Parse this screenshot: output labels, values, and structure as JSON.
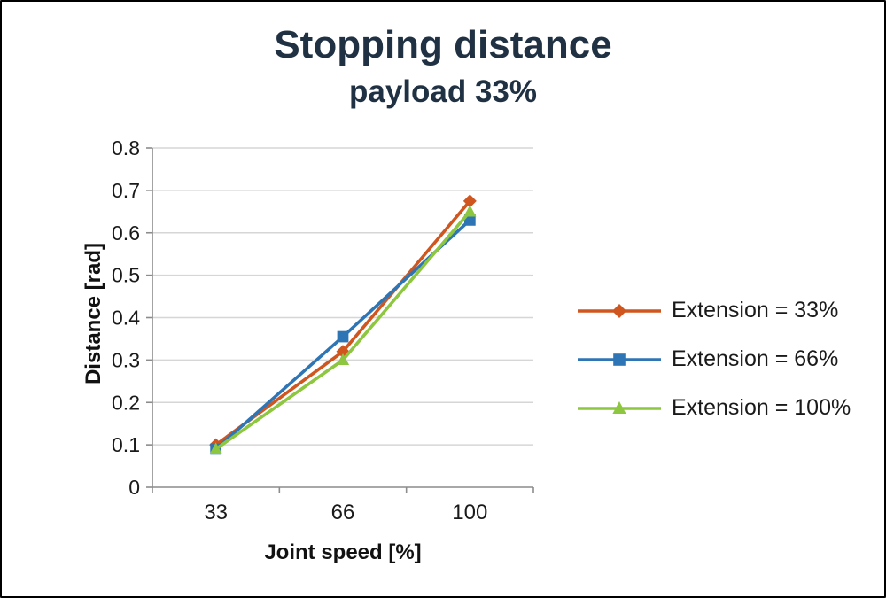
{
  "title": "Stopping distance",
  "subtitle": "payload 33%",
  "chart_data": {
    "type": "line",
    "categories": [
      "33",
      "66",
      "100"
    ],
    "x_values": [
      33,
      66,
      100
    ],
    "series": [
      {
        "name": "Extension = 33%",
        "marker": "diamond",
        "color": "#d0561f",
        "values": [
          0.1,
          0.32,
          0.675
        ]
      },
      {
        "name": "Extension = 66%",
        "marker": "square",
        "color": "#2e75b6",
        "values": [
          0.09,
          0.355,
          0.63
        ]
      },
      {
        "name": "Extension = 100%",
        "marker": "triangle",
        "color": "#8dc63f",
        "values": [
          0.09,
          0.3,
          0.65
        ]
      }
    ],
    "title": "Stopping distance",
    "subtitle": "payload 33%",
    "xlabel": "Joint speed [%]",
    "ylabel": "Distance [rad]",
    "ylim": [
      0,
      0.8
    ],
    "ytick_step": 0.1,
    "yticks": [
      "0",
      "0.1",
      "0.2",
      "0.3",
      "0.4",
      "0.5",
      "0.6",
      "0.7",
      "0.8"
    ],
    "grid": true,
    "legend_position": "right"
  },
  "colors": {
    "title": "#1f3142",
    "grid": "#d6d6d6",
    "axis": "#8c8c8c",
    "tick_text": "#1a1a1a"
  }
}
